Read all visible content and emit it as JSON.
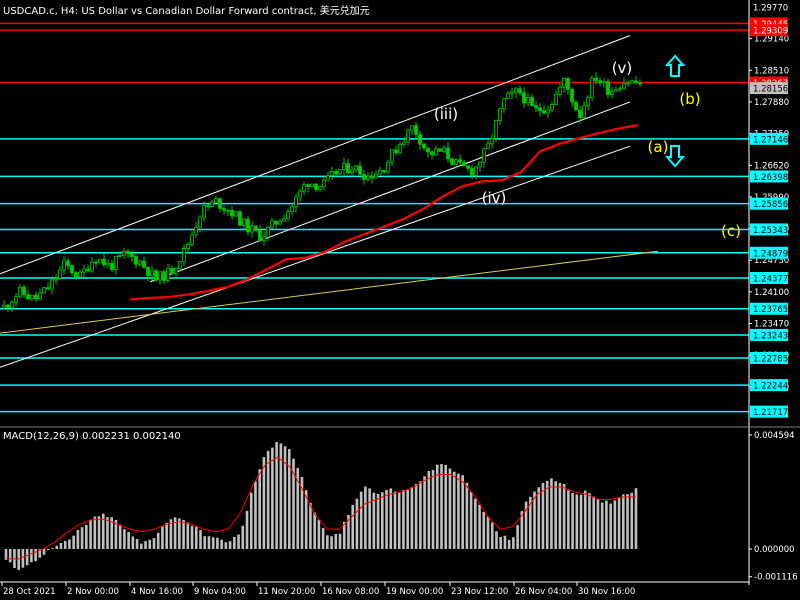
{
  "header": {
    "title": "USDCAD.c, H4:  US Dollar vs Canadian Dollar Forward contract, 美元兑加元"
  },
  "macd_panel": {
    "label": "MACD(12,26,9) 0.002231 0.002140"
  },
  "colors": {
    "background": "#000000",
    "candle": "#00c800",
    "ma": "#ff0000",
    "channel": "#ffffff",
    "trendline": "#d4d24a",
    "support_level": "#00ffff",
    "resistance_level": "#ff0000",
    "wave_label_white": "#ffffff",
    "wave_label_yellow": "#ffff00",
    "arrow": "#00ffff",
    "macd_hist": "#c0c0c0",
    "macd_signal": "#ff0000"
  },
  "chart_data": [
    {
      "type": "candlestick",
      "symbol": "USDCAD.c",
      "timeframe": "H4",
      "ylim": [
        1.2135,
        1.2985
      ],
      "y_ticks": [
        1.2914,
        1.2851,
        1.2788,
        1.2725,
        1.2662,
        1.2599,
        1.2536,
        1.2473,
        1.241,
        1.2347,
        1.2284,
        1.2221
      ],
      "x_ticks": [
        "28 Oct 2021",
        "2 Nov 00:00",
        "4 Nov 16:00",
        "9 Nov 04:00",
        "11 Nov 20:00",
        "16 Nov 08:00",
        "19 Nov 00:00",
        "23 Nov 12:00",
        "26 Nov 04:00",
        "30 Nov 16:00"
      ],
      "price_tags": {
        "top": "1.29770",
        "red": [
          "1.29445",
          "1.29309",
          "1.28267"
        ],
        "current": "1.28156",
        "current_value": 1.28156,
        "cyan": [
          "1.27146",
          "1.26398",
          "1.25856",
          "1.25343",
          "1.24879",
          "1.24377",
          "1.23765",
          "1.23243",
          "1.22785",
          "1.22244",
          "1.21717"
        ]
      },
      "levels": {
        "resistance": [
          1.29445,
          1.29309,
          1.28267
        ],
        "support": [
          1.27146,
          1.26398,
          1.25856,
          1.25343,
          1.24879,
          1.24377,
          1.23765,
          1.23243,
          1.22785,
          1.22244,
          1.21717
        ]
      },
      "close_path": [
        1.238,
        1.241,
        1.2395,
        1.242,
        1.2465,
        1.244,
        1.248,
        1.246,
        1.2485,
        1.247,
        1.2435,
        1.245,
        1.2495,
        1.257,
        1.259,
        1.257,
        1.254,
        1.252,
        1.255,
        1.258,
        1.263,
        1.262,
        1.265,
        1.266,
        1.264,
        1.2655,
        1.27,
        1.274,
        1.2685,
        1.269,
        1.266,
        1.265,
        1.27,
        1.279,
        1.281,
        1.277,
        1.278,
        1.283,
        1.276,
        1.284,
        1.281,
        1.283,
        1.2825
      ],
      "ma_path": [
        1.2395,
        1.2398,
        1.24,
        1.2405,
        1.2412,
        1.242,
        1.2435,
        1.2455,
        1.2475,
        1.2478,
        1.249,
        1.251,
        1.2525,
        1.254,
        1.2555,
        1.2575,
        1.26,
        1.262,
        1.263,
        1.2632,
        1.2648,
        1.269,
        1.2705,
        1.2716,
        1.2726,
        1.2735,
        1.2742
      ],
      "ma_x_start_index": 16,
      "wave_labels": [
        {
          "text": "(iii)",
          "color": "white"
        },
        {
          "text": "(iv)",
          "color": "white"
        },
        {
          "text": "(v)",
          "color": "white"
        },
        {
          "text": "(a)",
          "color": "yellow"
        },
        {
          "text": "(b)",
          "color": "yellow"
        },
        {
          "text": "(c)",
          "color": "yellow"
        }
      ],
      "grid": false
    },
    {
      "type": "bar",
      "name": "MACD(12,26,9)",
      "macd_value": 0.002231,
      "signal_value": 0.00214,
      "y_ticks": [
        "0.004594",
        "0.000000",
        "-0.001116"
      ],
      "ylim": [
        -0.001116,
        0.004594
      ],
      "histogram": [
        -0.0005,
        -0.0008,
        -0.0006,
        -0.0002,
        0.0001,
        0.0003,
        0.0008,
        0.0012,
        0.0014,
        0.0011,
        0.0006,
        0.0002,
        0.0005,
        0.0011,
        0.0013,
        0.001,
        0.0006,
        0.0004,
        0.0003,
        0.0006,
        0.0025,
        0.0038,
        0.0044,
        0.004,
        0.0028,
        0.0014,
        0.0005,
        0.0006,
        0.0017,
        0.0026,
        0.0022,
        0.0024,
        0.0023,
        0.0025,
        0.003,
        0.0034,
        0.0033,
        0.0029,
        0.002,
        0.0013,
        0.0005,
        0.0004,
        0.0018,
        0.0025,
        0.0028,
        0.0027,
        0.0022,
        0.0023,
        0.0019,
        0.0019,
        0.0022,
        0.0024
      ],
      "signal": [
        -0.0004,
        -0.0004,
        -0.0002,
        0.0,
        0.0003,
        0.0007,
        0.001,
        0.0012,
        0.0012,
        0.001,
        0.0008,
        0.0007,
        0.0008,
        0.001,
        0.0011,
        0.001,
        0.0008,
        0.0007,
        0.0008,
        0.0015,
        0.0026,
        0.0034,
        0.0037,
        0.0033,
        0.0024,
        0.0014,
        0.0008,
        0.0008,
        0.0013,
        0.0018,
        0.002,
        0.0022,
        0.0023,
        0.0025,
        0.0028,
        0.003,
        0.003,
        0.0027,
        0.0021,
        0.0013,
        0.0008,
        0.0009,
        0.0015,
        0.0022,
        0.0025,
        0.0025,
        0.0023,
        0.0022,
        0.002,
        0.002,
        0.0021,
        0.0021
      ]
    }
  ]
}
